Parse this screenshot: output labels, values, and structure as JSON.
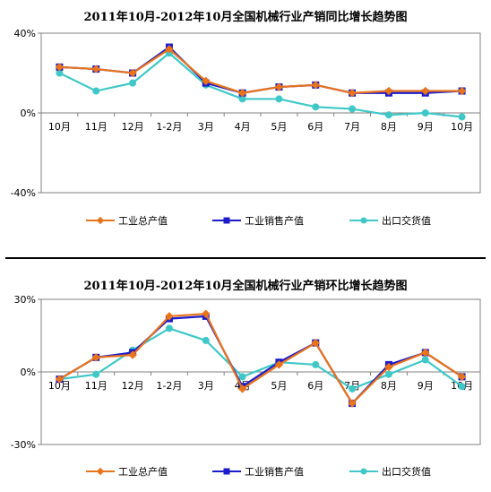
{
  "chart_data": [
    {
      "type": "line",
      "title": "2011年10月-2012年10月全国机械行业产销同比增长趋势图",
      "categories": [
        "10月",
        "11月",
        "12月",
        "1-2月",
        "3月",
        "4月",
        "5月",
        "6月",
        "7月",
        "8月",
        "9月",
        "10月"
      ],
      "y_ticks": [
        "40%",
        "0%",
        "-40%"
      ],
      "ylim": [
        -40,
        40
      ],
      "grid": false,
      "legend": "bottom",
      "series": [
        {
          "name": "工业总产值",
          "color": "#e8741c",
          "marker": "diamond",
          "values": [
            23,
            22,
            20,
            32,
            16,
            10,
            13,
            14,
            10,
            11,
            11,
            11
          ]
        },
        {
          "name": "工业销售产值",
          "color": "#1c1ccc",
          "marker": "square",
          "values": [
            23,
            22,
            20,
            33,
            15,
            10,
            13,
            14,
            10,
            10,
            10,
            11
          ]
        },
        {
          "name": "出口交货值",
          "color": "#40c8c8",
          "marker": "circle",
          "values": [
            20,
            11,
            15,
            30,
            14,
            7,
            7,
            3,
            2,
            -1,
            0,
            -2
          ]
        }
      ]
    },
    {
      "type": "line",
      "title": "2011年10月-2012年10月全国机械行业产销环比增长趋势图",
      "categories": [
        "10月",
        "11月",
        "12月",
        "1-2月",
        "3月",
        "4月",
        "5月",
        "6月",
        "7月",
        "8月",
        "9月",
        "10月"
      ],
      "y_ticks": [
        "30%",
        "0%",
        "-30%"
      ],
      "ylim": [
        -30,
        30
      ],
      "grid": false,
      "legend": "bottom",
      "series": [
        {
          "name": "工业总产值",
          "color": "#e8741c",
          "marker": "diamond",
          "values": [
            -3,
            6,
            7,
            23,
            24,
            -7,
            3,
            12,
            -13,
            2,
            8,
            -2
          ]
        },
        {
          "name": "工业销售产值",
          "color": "#1c1ccc",
          "marker": "square",
          "values": [
            -3,
            6,
            8,
            22,
            23,
            -6,
            4,
            12,
            -13,
            3,
            8,
            -2
          ]
        },
        {
          "name": "出口交货值",
          "color": "#40c8c8",
          "marker": "circle",
          "values": [
            -3,
            -1,
            9,
            18,
            13,
            -2,
            4,
            3,
            -7,
            -1,
            5,
            -6
          ]
        }
      ]
    }
  ]
}
